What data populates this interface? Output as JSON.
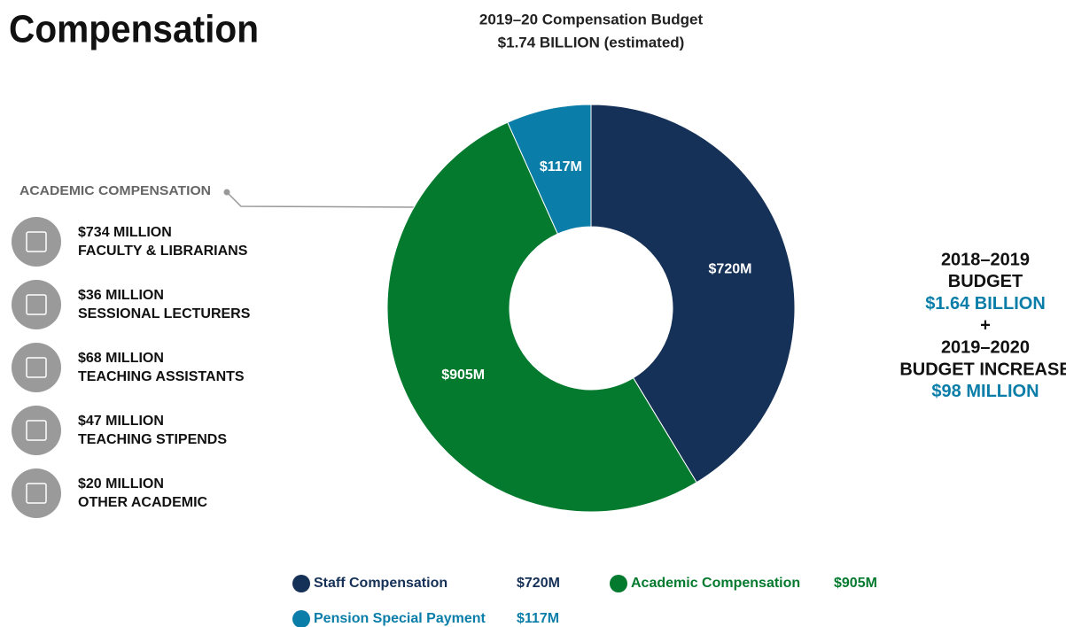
{
  "heading": "Compensation",
  "chart_data": {
    "type": "pie",
    "donut": true,
    "title": "2019–20 Compensation Budget",
    "subtitle": "$1.74 BILLION (estimated)",
    "categories": [
      "Staff Compensation",
      "Academic Compensation",
      "Pension Special Payment"
    ],
    "values": [
      720,
      905,
      117
    ],
    "value_labels": [
      "$720M",
      "$905M",
      "$117M"
    ],
    "colors": [
      "#163157",
      "#047a2e",
      "#0a7ea8"
    ]
  },
  "academic": {
    "title": "ACADEMIC COMPENSATION",
    "items": [
      {
        "amount": "$734 MILLION",
        "label": "FACULTY & LIBRARIANS"
      },
      {
        "amount": "$36 MILLION",
        "label": "SESSIONAL LECTURERS"
      },
      {
        "amount": "$68 MILLION",
        "label": "TEACHING ASSISTANTS"
      },
      {
        "amount": "$47 MILLION",
        "label": "TEACHING STIPENDS"
      },
      {
        "amount": "$20 MILLION",
        "label": "OTHER ACADEMIC"
      }
    ]
  },
  "budget": {
    "lines": [
      "2018–2019",
      "BUDGET",
      "$1.64 BILLION",
      "+",
      "2019–2020",
      "BUDGET INCREASE",
      "$98 MILLION"
    ]
  }
}
